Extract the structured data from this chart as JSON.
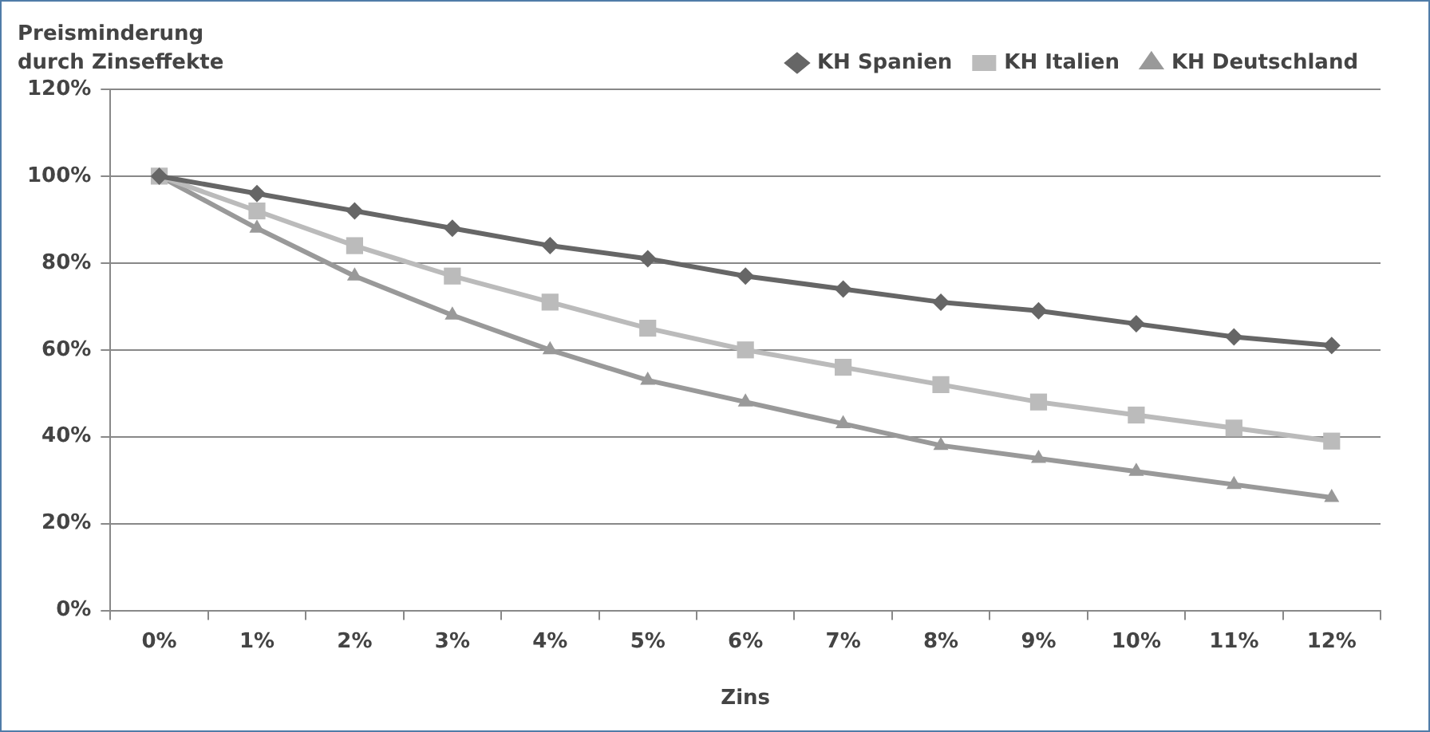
{
  "chart_data": {
    "type": "line",
    "title": "Preisminderung\ndurch Zinseffekte",
    "xlabel": "Zins",
    "categories": [
      "0%",
      "1%",
      "2%",
      "3%",
      "4%",
      "5%",
      "6%",
      "7%",
      "8%",
      "9%",
      "10%",
      "11%",
      "12%"
    ],
    "series": [
      {
        "name": "KH Spanien",
        "color": "#666666",
        "marker": "diamond",
        "values": [
          100,
          96,
          92,
          88,
          84,
          81,
          77,
          74,
          71,
          69,
          66,
          63,
          61
        ]
      },
      {
        "name": "KH Italien",
        "color": "#bbbbbb",
        "marker": "square",
        "values": [
          100,
          92,
          84,
          77,
          71,
          65,
          60,
          56,
          52,
          48,
          45,
          42,
          39
        ]
      },
      {
        "name": "KH Deutschland",
        "color": "#999999",
        "marker": "triangle",
        "values": [
          100,
          88,
          77,
          68,
          60,
          53,
          48,
          43,
          38,
          35,
          32,
          29,
          26
        ]
      }
    ],
    "ylim": [
      0,
      120
    ],
    "yticks": [
      {
        "value": 0,
        "label": "0%"
      },
      {
        "value": 20,
        "label": "20%"
      },
      {
        "value": 40,
        "label": "40%"
      },
      {
        "value": 60,
        "label": "60%"
      },
      {
        "value": 80,
        "label": "80%"
      },
      {
        "value": 100,
        "label": "100%"
      },
      {
        "value": 120,
        "label": "120%"
      }
    ],
    "grid": "y",
    "legend": "top right",
    "line_style": "solid"
  }
}
